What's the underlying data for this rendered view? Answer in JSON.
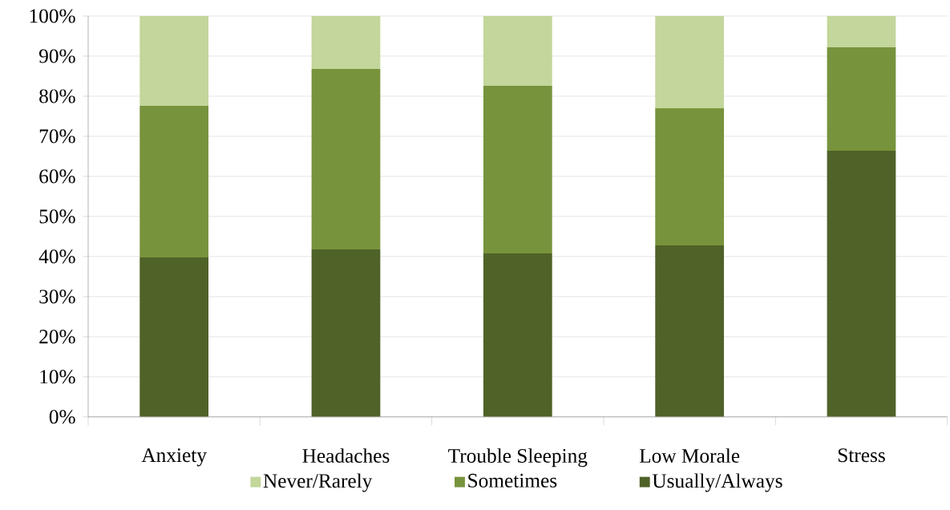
{
  "chart_data": {
    "type": "bar",
    "stacked": true,
    "categories": [
      "Anxiety",
      "Headaches",
      "Trouble Sleeping",
      "Low Morale",
      "Stress"
    ],
    "series": [
      {
        "name": "Usually/Always",
        "color": "#4f6228",
        "values": [
          39.8,
          41.8,
          40.8,
          42.8,
          66.4
        ]
      },
      {
        "name": "Sometimes",
        "color": "#77933c",
        "values": [
          37.8,
          45,
          41.8,
          34.2,
          25.8
        ]
      },
      {
        "name": "Never/Rarely",
        "color": "#c3d69b",
        "values": [
          22.4,
          13.2,
          17.4,
          23,
          7.8
        ]
      }
    ],
    "ylim": [
      0,
      100
    ],
    "yticks": [
      {
        "value": 0,
        "label": "0%"
      },
      {
        "value": 10,
        "label": "10%"
      },
      {
        "value": 20,
        "label": "20%"
      },
      {
        "value": 30,
        "label": "30%"
      },
      {
        "value": 40,
        "label": "40%"
      },
      {
        "value": 50,
        "label": "50%"
      },
      {
        "value": 60,
        "label": "60%"
      },
      {
        "value": 70,
        "label": "70%"
      },
      {
        "value": 80,
        "label": "80%"
      },
      {
        "value": 90,
        "label": "90%"
      },
      {
        "value": 100,
        "label": "100%"
      }
    ],
    "grid": "y",
    "legend": "bottom"
  }
}
